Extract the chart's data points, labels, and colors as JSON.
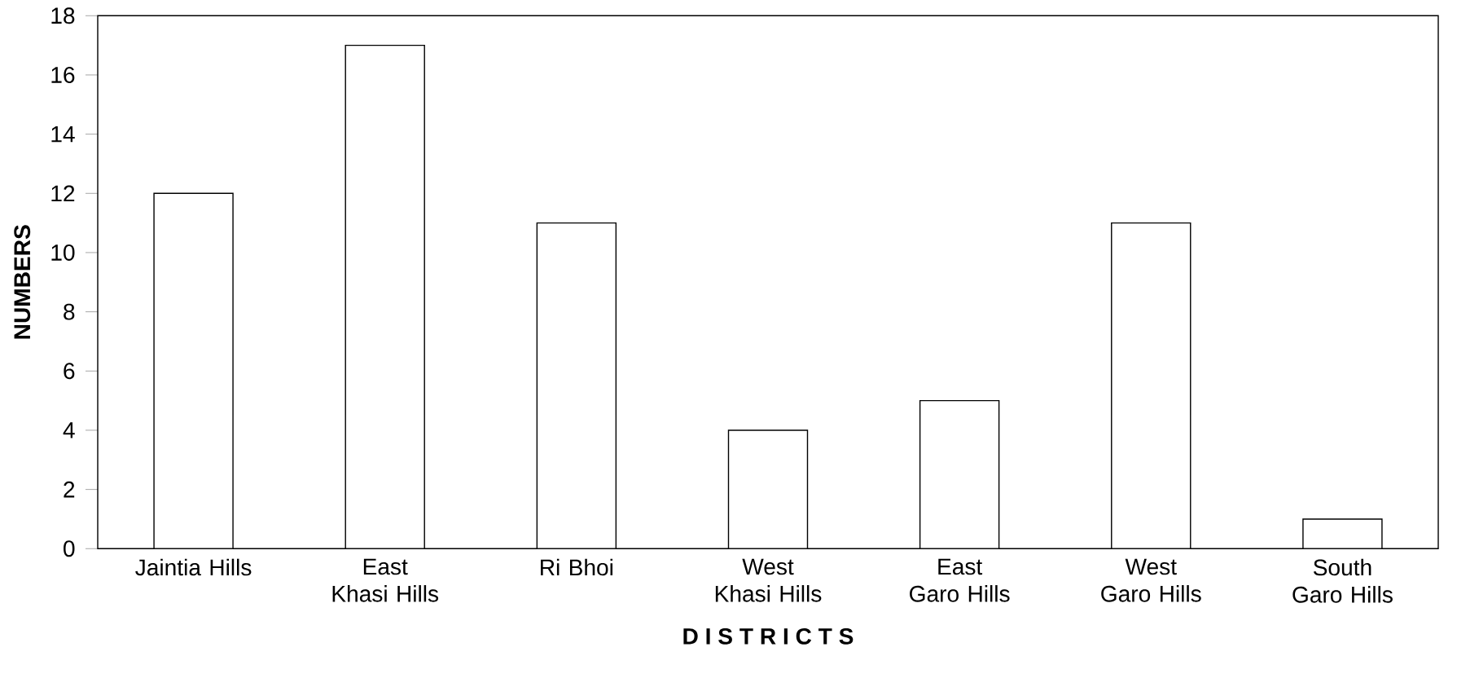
{
  "chart_data": {
    "type": "bar",
    "xlabel": "D I S T R I C T S",
    "ylabel": "NUMBERS",
    "categories": [
      "Jaintia Hills",
      "East Khasi Hills",
      "Ri Bhoi",
      "West Khasi Hills",
      "East Garo Hills",
      "West Garo Hills",
      "South Garo Hills"
    ],
    "values": [
      12,
      17,
      11,
      4,
      5,
      11,
      1
    ],
    "color": "#ffffff",
    "ylim": [
      0,
      18
    ],
    "yticks": [
      0,
      2,
      4,
      6,
      8,
      10,
      12,
      14,
      16,
      18
    ]
  }
}
